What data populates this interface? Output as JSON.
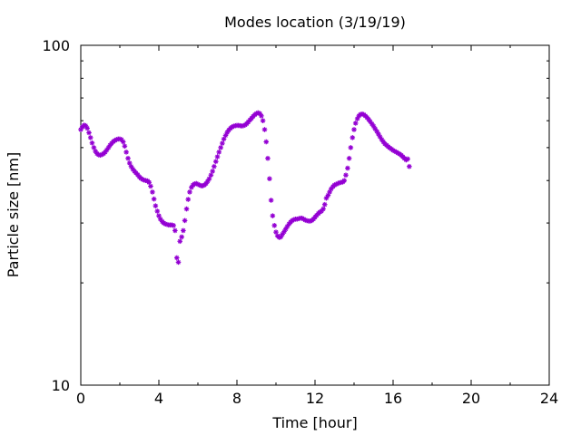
{
  "chart_data": {
    "type": "scatter",
    "title": "Modes location (3/19/19)",
    "xlabel": "Time [hour]",
    "ylabel": "Particle size [nm]",
    "xlim": [
      0,
      24
    ],
    "ylim": [
      10,
      100
    ],
    "yscale": "log",
    "x_ticks": [
      "0",
      "4",
      "8",
      "12",
      "16",
      "20",
      "24"
    ],
    "y_ticks": [
      "10",
      "100"
    ],
    "grid": false,
    "marker_color": "#9400d3",
    "points": [
      [
        0.0,
        56.5
      ],
      [
        0.08,
        57.5
      ],
      [
        0.17,
        58.2
      ],
      [
        0.25,
        58.0
      ],
      [
        0.33,
        57.0
      ],
      [
        0.42,
        55.3
      ],
      [
        0.5,
        53.5
      ],
      [
        0.58,
        51.6
      ],
      [
        0.67,
        50.0
      ],
      [
        0.75,
        48.8
      ],
      [
        0.83,
        48.0
      ],
      [
        0.92,
        47.6
      ],
      [
        1.0,
        47.5
      ],
      [
        1.08,
        47.7
      ],
      [
        1.17,
        48.0
      ],
      [
        1.25,
        48.5
      ],
      [
        1.33,
        49.2
      ],
      [
        1.42,
        50.0
      ],
      [
        1.5,
        50.8
      ],
      [
        1.58,
        51.5
      ],
      [
        1.67,
        52.1
      ],
      [
        1.75,
        52.5
      ],
      [
        1.83,
        52.8
      ],
      [
        1.92,
        53.0
      ],
      [
        2.0,
        53.0
      ],
      [
        2.08,
        52.8
      ],
      [
        2.17,
        52.0
      ],
      [
        2.25,
        50.5
      ],
      [
        2.33,
        48.5
      ],
      [
        2.42,
        46.5
      ],
      [
        2.5,
        45.0
      ],
      [
        2.58,
        44.0
      ],
      [
        2.67,
        43.2
      ],
      [
        2.75,
        42.6
      ],
      [
        2.83,
        42.1
      ],
      [
        2.92,
        41.6
      ],
      [
        3.0,
        41.0
      ],
      [
        3.08,
        40.6
      ],
      [
        3.17,
        40.3
      ],
      [
        3.25,
        40.1
      ],
      [
        3.33,
        40.0
      ],
      [
        3.42,
        39.9
      ],
      [
        3.5,
        39.5
      ],
      [
        3.58,
        38.5
      ],
      [
        3.67,
        37.0
      ],
      [
        3.75,
        35.3
      ],
      [
        3.83,
        33.7
      ],
      [
        3.92,
        32.5
      ],
      [
        4.0,
        31.5
      ],
      [
        4.08,
        30.8
      ],
      [
        4.17,
        30.3
      ],
      [
        4.25,
        30.0
      ],
      [
        4.33,
        29.8
      ],
      [
        4.42,
        29.7
      ],
      [
        4.5,
        29.6
      ],
      [
        4.58,
        29.6
      ],
      [
        4.67,
        29.6
      ],
      [
        4.75,
        29.5
      ],
      [
        4.83,
        28.5
      ],
      [
        4.92,
        23.7
      ],
      [
        5.0,
        23.0
      ],
      [
        5.08,
        26.5
      ],
      [
        5.17,
        27.3
      ],
      [
        5.25,
        28.5
      ],
      [
        5.33,
        30.5
      ],
      [
        5.42,
        33.0
      ],
      [
        5.5,
        35.2
      ],
      [
        5.58,
        37.0
      ],
      [
        5.67,
        38.2
      ],
      [
        5.75,
        38.8
      ],
      [
        5.83,
        39.1
      ],
      [
        5.92,
        39.2
      ],
      [
        6.0,
        39.0
      ],
      [
        6.08,
        38.8
      ],
      [
        6.17,
        38.6
      ],
      [
        6.25,
        38.6
      ],
      [
        6.33,
        38.8
      ],
      [
        6.42,
        39.2
      ],
      [
        6.5,
        39.8
      ],
      [
        6.58,
        40.5
      ],
      [
        6.67,
        41.5
      ],
      [
        6.75,
        42.6
      ],
      [
        6.83,
        44.0
      ],
      [
        6.92,
        45.5
      ],
      [
        7.0,
        47.0
      ],
      [
        7.08,
        48.5
      ],
      [
        7.17,
        50.0
      ],
      [
        7.25,
        51.5
      ],
      [
        7.33,
        53.0
      ],
      [
        7.42,
        54.3
      ],
      [
        7.5,
        55.4
      ],
      [
        7.58,
        56.3
      ],
      [
        7.67,
        57.0
      ],
      [
        7.75,
        57.5
      ],
      [
        7.83,
        57.8
      ],
      [
        7.92,
        58.0
      ],
      [
        8.0,
        58.1
      ],
      [
        8.08,
        58.1
      ],
      [
        8.17,
        58.0
      ],
      [
        8.25,
        57.9
      ],
      [
        8.33,
        58.0
      ],
      [
        8.42,
        58.3
      ],
      [
        8.5,
        58.8
      ],
      [
        8.58,
        59.5
      ],
      [
        8.67,
        60.3
      ],
      [
        8.75,
        61.0
      ],
      [
        8.83,
        61.8
      ],
      [
        8.92,
        62.5
      ],
      [
        9.0,
        63.0
      ],
      [
        9.08,
        63.3
      ],
      [
        9.17,
        63.0
      ],
      [
        9.25,
        62.0
      ],
      [
        9.33,
        60.0
      ],
      [
        9.42,
        56.5
      ],
      [
        9.5,
        52.0
      ],
      [
        9.58,
        46.5
      ],
      [
        9.67,
        40.5
      ],
      [
        9.75,
        35.0
      ],
      [
        9.83,
        31.5
      ],
      [
        9.92,
        29.5
      ],
      [
        10.0,
        28.2
      ],
      [
        10.08,
        27.5
      ],
      [
        10.17,
        27.2
      ],
      [
        10.25,
        27.3
      ],
      [
        10.33,
        27.8
      ],
      [
        10.42,
        28.3
      ],
      [
        10.5,
        28.8
      ],
      [
        10.58,
        29.3
      ],
      [
        10.67,
        29.8
      ],
      [
        10.75,
        30.2
      ],
      [
        10.83,
        30.5
      ],
      [
        10.92,
        30.7
      ],
      [
        11.0,
        30.8
      ],
      [
        11.08,
        30.8
      ],
      [
        11.17,
        30.9
      ],
      [
        11.25,
        31.0
      ],
      [
        11.33,
        31.0
      ],
      [
        11.42,
        30.8
      ],
      [
        11.5,
        30.6
      ],
      [
        11.58,
        30.5
      ],
      [
        11.67,
        30.4
      ],
      [
        11.75,
        30.4
      ],
      [
        11.83,
        30.5
      ],
      [
        11.92,
        30.8
      ],
      [
        12.0,
        31.2
      ],
      [
        12.08,
        31.6
      ],
      [
        12.17,
        32.0
      ],
      [
        12.25,
        32.3
      ],
      [
        12.33,
        32.5
      ],
      [
        12.42,
        33.0
      ],
      [
        12.5,
        34.0
      ],
      [
        12.58,
        35.5
      ],
      [
        12.67,
        36.2
      ],
      [
        12.75,
        37.0
      ],
      [
        12.83,
        37.8
      ],
      [
        12.92,
        38.4
      ],
      [
        13.0,
        38.8
      ],
      [
        13.08,
        39.0
      ],
      [
        13.17,
        39.2
      ],
      [
        13.25,
        39.4
      ],
      [
        13.33,
        39.5
      ],
      [
        13.42,
        39.6
      ],
      [
        13.5,
        40.0
      ],
      [
        13.58,
        41.5
      ],
      [
        13.67,
        43.5
      ],
      [
        13.75,
        46.5
      ],
      [
        13.83,
        50.0
      ],
      [
        13.92,
        53.5
      ],
      [
        14.0,
        56.5
      ],
      [
        14.08,
        59.0
      ],
      [
        14.17,
        60.8
      ],
      [
        14.25,
        62.0
      ],
      [
        14.33,
        62.6
      ],
      [
        14.42,
        62.8
      ],
      [
        14.5,
        62.5
      ],
      [
        14.58,
        62.0
      ],
      [
        14.67,
        61.3
      ],
      [
        14.75,
        60.5
      ],
      [
        14.83,
        59.6
      ],
      [
        14.92,
        58.7
      ],
      [
        15.0,
        57.8
      ],
      [
        15.08,
        56.8
      ],
      [
        15.17,
        55.8
      ],
      [
        15.25,
        54.8
      ],
      [
        15.33,
        53.8
      ],
      [
        15.42,
        52.8
      ],
      [
        15.5,
        52.0
      ],
      [
        15.58,
        51.3
      ],
      [
        15.67,
        50.8
      ],
      [
        15.75,
        50.3
      ],
      [
        15.83,
        49.9
      ],
      [
        15.92,
        49.5
      ],
      [
        16.0,
        49.1
      ],
      [
        16.08,
        48.8
      ],
      [
        16.17,
        48.5
      ],
      [
        16.25,
        48.2
      ],
      [
        16.33,
        47.9
      ],
      [
        16.42,
        47.5
      ],
      [
        16.5,
        47.0
      ],
      [
        16.58,
        46.5
      ],
      [
        16.67,
        46.0
      ],
      [
        16.75,
        46.3
      ],
      [
        16.83,
        44.0
      ]
    ]
  }
}
